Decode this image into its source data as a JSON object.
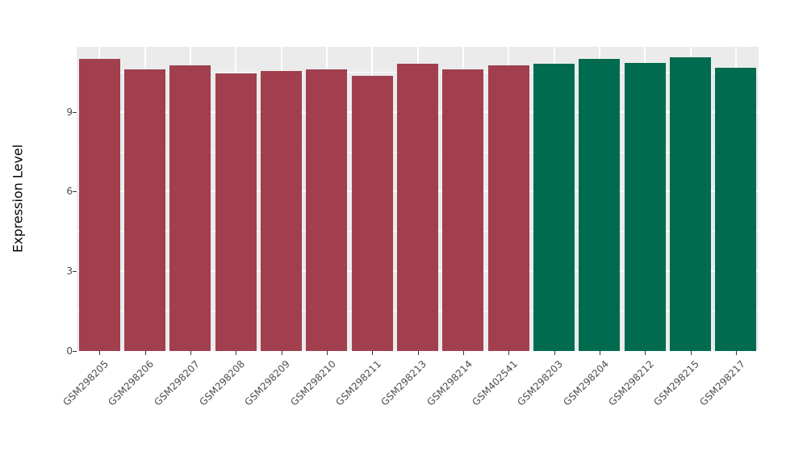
{
  "chart_data": {
    "type": "bar",
    "title": "",
    "xlabel": "",
    "ylabel": "Expression Level",
    "ylim": [
      0,
      11.45
    ],
    "yticks": [
      0,
      3,
      6,
      9
    ],
    "minor_ticks": [
      1.5,
      4.5,
      7.5,
      10.5
    ],
    "grid": "on",
    "legend_position": "none",
    "panel_background": "#EBEBEB",
    "gridline_color": "#ffffff",
    "categories": [
      "GSM298205",
      "GSM298206",
      "GSM298207",
      "GSM298208",
      "GSM298209",
      "GSM298210",
      "GSM298211",
      "GSM298213",
      "GSM298214",
      "GSM402541",
      "GSM298203",
      "GSM298204",
      "GSM298212",
      "GSM298215",
      "GSM298217"
    ],
    "values": [
      11.0,
      10.6,
      10.75,
      10.45,
      10.55,
      10.6,
      10.35,
      10.8,
      10.6,
      10.75,
      10.8,
      11.0,
      10.85,
      11.05,
      10.65
    ],
    "bar_colors": [
      "#A13F4E",
      "#A13F4E",
      "#A13F4E",
      "#A13F4E",
      "#A13F4E",
      "#A13F4E",
      "#A13F4E",
      "#A13F4E",
      "#A13F4E",
      "#A13F4E",
      "#006B4E",
      "#006B4E",
      "#006B4E",
      "#006B4E",
      "#006B4E"
    ],
    "group_colors": {
      "group1": "#A13F4E",
      "group2": "#006B4E"
    }
  }
}
